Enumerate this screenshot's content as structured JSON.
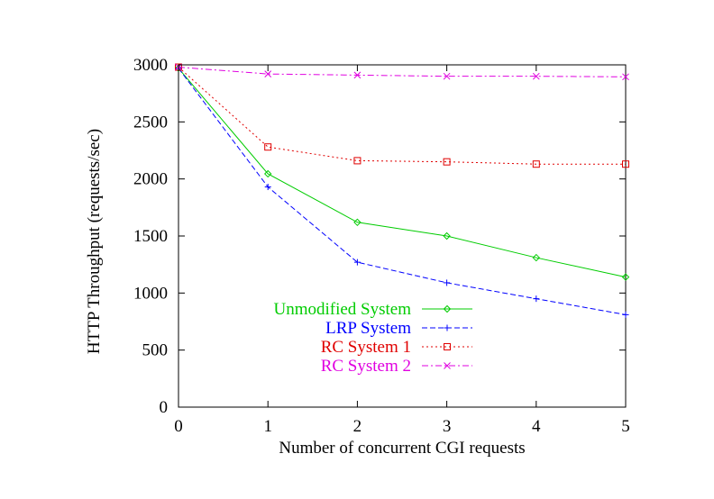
{
  "chart_data": {
    "type": "line",
    "xlabel": "Number of concurrent CGI requests",
    "ylabel": "HTTP Throughput (requests/sec)",
    "xlim": [
      0,
      5
    ],
    "ylim": [
      0,
      3000
    ],
    "xticks": [
      0,
      1,
      2,
      3,
      4,
      5
    ],
    "yticks": [
      0,
      500,
      1000,
      1500,
      2000,
      2500,
      3000
    ],
    "grid": false,
    "legend_position": "lower-left",
    "x": [
      0,
      1,
      2,
      3,
      4,
      5
    ],
    "series": [
      {
        "name": "Unmodified System",
        "color": "#00cc00",
        "marker": "diamond",
        "dash": "solid",
        "values": [
          2970,
          2045,
          1620,
          1500,
          1310,
          1140
        ]
      },
      {
        "name": "LRP System",
        "color": "#0000ff",
        "marker": "plus",
        "dash": "dashed",
        "values": [
          2970,
          1930,
          1270,
          1090,
          950,
          810
        ]
      },
      {
        "name": "RC System 1",
        "color": "#e00000",
        "marker": "square",
        "dash": "dotted",
        "values": [
          2980,
          2280,
          2160,
          2150,
          2130,
          2130
        ]
      },
      {
        "name": "RC System 2",
        "color": "#e000e0",
        "marker": "cross",
        "dash": "dash-dot",
        "values": [
          2980,
          2920,
          2910,
          2900,
          2900,
          2895
        ]
      }
    ]
  }
}
